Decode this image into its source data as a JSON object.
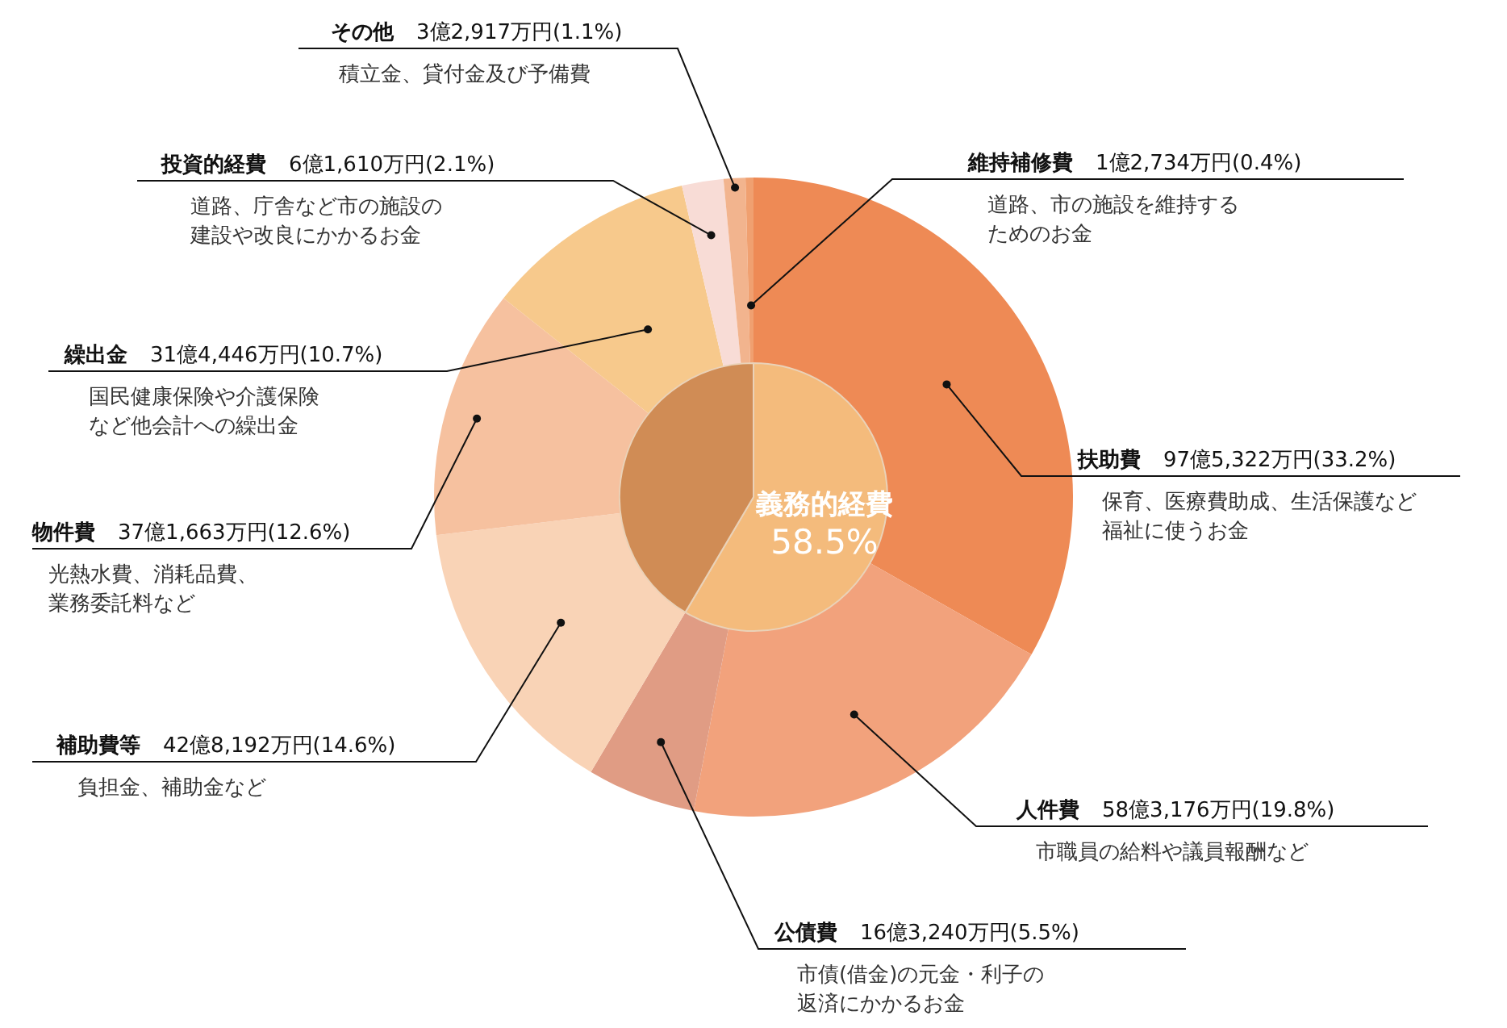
{
  "chart_data": [
    {
      "type": "donut",
      "categories": [
        "扶助費",
        "人件費",
        "公債費",
        "補助費等",
        "物件費",
        "繰出金",
        "投資的経費",
        "その他",
        "維持補修費"
      ],
      "values": [
        33.2,
        19.8,
        5.5,
        14.6,
        12.6,
        10.7,
        2.1,
        1.1,
        0.4
      ],
      "colors": [
        "#ee8a55",
        "#f2a27c",
        "#e09c84",
        "#f9d3b6",
        "#f6c19f",
        "#f7c98c",
        "#f8dcd6",
        "#f2b48e",
        "#f0a070"
      ],
      "value_labels": [
        "97億5,322万円(33.2%)",
        "58億3,176万円(19.8%)",
        "16億3,240万円(5.5%)",
        "42億8,192万円(14.6%)",
        "37億1,663万円(12.6%)",
        "31億4,446万円(10.7%)",
        "6億1,610万円(2.1%)",
        "3億2,917万円(1.1%)",
        "1億2,734万円(0.4%)"
      ],
      "annotations": [
        "保育、医療費助成、生活保護など福祉に使うお金",
        "市職員の給料や議員報酬など",
        "市債(借金)の元金・利子の返済にかかるお金",
        "負担金、補助金など",
        "光熱水費、消耗品費、業務委託料など",
        "国民健康保険や介護保険など他会計への繰出金",
        "道路、庁舎など市の施設の建設や改良にかかるお金",
        "積立金、貸付金及び予備費",
        "道路、市の施設を維持するためのお金"
      ]
    },
    {
      "type": "pie",
      "categories": [
        "義務的経費",
        null
      ],
      "values": [
        58.5,
        41.5
      ],
      "colors": [
        "#f4bb7c",
        "#d08c55"
      ],
      "value_labels": [
        "58.5%",
        null
      ]
    }
  ]
}
